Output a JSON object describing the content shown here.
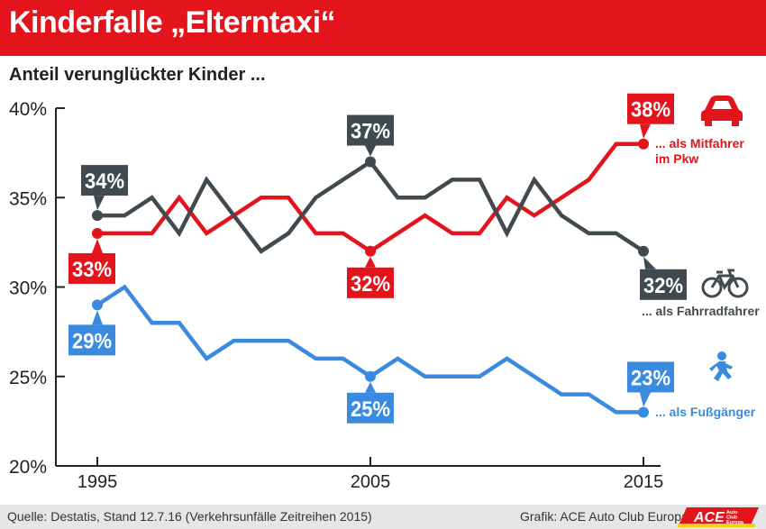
{
  "header": {
    "title": "Kinderfalle „Elterntaxi“"
  },
  "subtitle": "Anteil verunglückter Kinder ...",
  "chart_data": {
    "type": "line",
    "x": [
      1995,
      1996,
      1997,
      1998,
      1999,
      2000,
      2001,
      2002,
      2003,
      2004,
      2005,
      2006,
      2007,
      2008,
      2009,
      2010,
      2011,
      2012,
      2013,
      2014,
      2015
    ],
    "xticks": [
      "1995",
      "2005",
      "2015"
    ],
    "yticks": [
      "20%",
      "25%",
      "30%",
      "35%",
      "40%"
    ],
    "ylim": [
      20,
      40
    ],
    "series": [
      {
        "key": "mitfahrer",
        "name": "... als Mitfahrer im Pkw",
        "name_lines": [
          "... als Mitfahrer",
          "im Pkw"
        ],
        "color": "#e3141c",
        "icon": "car-icon",
        "values": [
          33,
          33,
          33,
          35,
          33,
          34,
          35,
          35,
          33,
          33,
          32,
          33,
          34,
          33,
          33,
          35,
          34,
          35,
          36,
          38,
          38
        ]
      },
      {
        "key": "fahrrad",
        "name": "... als Fahrradfahrer",
        "name_lines": [
          "... als Fahrradfahrer"
        ],
        "color": "#404a4f",
        "icon": "bicycle-icon",
        "values": [
          34,
          34,
          35,
          33,
          36,
          34,
          32,
          33,
          35,
          36,
          37,
          35,
          35,
          36,
          36,
          33,
          36,
          34,
          33,
          33,
          32
        ]
      },
      {
        "key": "fussgaenger",
        "name": "... als Fußgänger",
        "name_lines": [
          "... als Fußgänger"
        ],
        "color": "#3a8ae0",
        "icon": "pedestrian-icon",
        "values": [
          29,
          30,
          28,
          28,
          26,
          27,
          27,
          27,
          26,
          26,
          25,
          26,
          25,
          25,
          25,
          26,
          25,
          24,
          24,
          23,
          23
        ]
      }
    ],
    "annotations": [
      {
        "series": "fahrrad",
        "x": 1995,
        "y": 34,
        "label": "34%",
        "box": "#404a4f",
        "pos": "above-right"
      },
      {
        "series": "mitfahrer",
        "x": 1995,
        "y": 33,
        "label": "33%",
        "box": "#e3141c",
        "pos": "below-left"
      },
      {
        "series": "fussgaenger",
        "x": 1995,
        "y": 29,
        "label": "29%",
        "box": "#3a8ae0",
        "pos": "below-left"
      },
      {
        "series": "fahrrad",
        "x": 2005,
        "y": 37,
        "label": "37%",
        "box": "#404a4f",
        "pos": "above"
      },
      {
        "series": "mitfahrer",
        "x": 2005,
        "y": 32,
        "label": "32%",
        "box": "#e3141c",
        "pos": "below"
      },
      {
        "series": "fussgaenger",
        "x": 2005,
        "y": 25,
        "label": "25%",
        "box": "#3a8ae0",
        "pos": "below"
      },
      {
        "series": "mitfahrer",
        "x": 2015,
        "y": 38,
        "label": "38%",
        "box": "#e3141c",
        "pos": "above-right"
      },
      {
        "series": "fahrrad",
        "x": 2015,
        "y": 32,
        "label": "32%",
        "box": "#404a4f",
        "pos": "below-right"
      },
      {
        "series": "fussgaenger",
        "x": 2015,
        "y": 23,
        "label": "23%",
        "box": "#3a8ae0",
        "pos": "above-right"
      }
    ],
    "grid": false
  },
  "footer": {
    "source": "Quelle: Destatis, Stand 12.7.16 (Verkehrsunfälle Zeitreihen 2015)",
    "credit": "Grafik: ACE Auto Club Europa",
    "logo_text": "ACE",
    "logo_sub": [
      "Auto",
      "Club",
      "Europa"
    ]
  },
  "colors": {
    "header": "#e3141c",
    "footer": "#e6e6e6"
  }
}
